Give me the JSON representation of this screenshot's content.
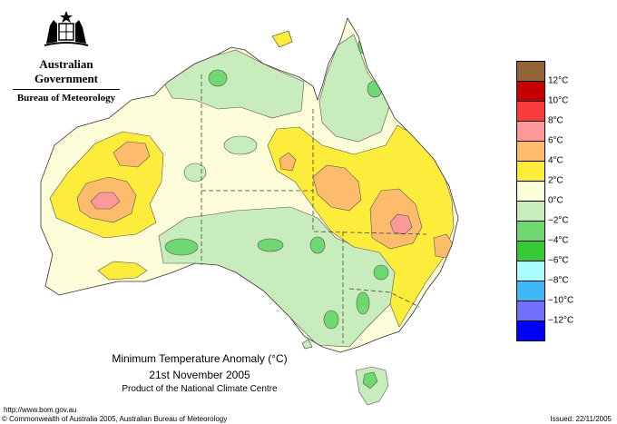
{
  "header": {
    "government": "Australian Government",
    "bureau": "Bureau of Meteorology"
  },
  "map": {
    "title": "Minimum Temperature Anomaly (°C)",
    "date": "21st November 2005",
    "product": "Product of the National Climate Centre"
  },
  "legend": {
    "items": [
      {
        "label": "12°C",
        "color": "#946338"
      },
      {
        "label": "10°C",
        "color": "#c40000"
      },
      {
        "label": "8°C",
        "color": "#fa3c3c"
      },
      {
        "label": "6°C",
        "color": "#fc9898"
      },
      {
        "label": "4°C",
        "color": "#fcbc6c"
      },
      {
        "label": "2°C",
        "color": "#fcec3c"
      },
      {
        "label": "0°C",
        "color": "#fcfcd8"
      },
      {
        "label": "−2°C",
        "color": "#c8ecbc"
      },
      {
        "label": "−4°C",
        "color": "#70d870"
      },
      {
        "label": "−6°C",
        "color": "#36c836"
      },
      {
        "label": "−8°C",
        "color": "#a8fcfc"
      },
      {
        "label": "−10°C",
        "color": "#40b8f8"
      },
      {
        "label": "−12°C",
        "color": "#7070fc"
      },
      {
        "label": "",
        "color": "#0000ff"
      }
    ]
  },
  "footer": {
    "url": "http://www.bom.gov.au",
    "copyright": "© Commonwealth of Australia 2005, Australian Bureau of Meteorology",
    "issued": "Issued: 22/11/2005"
  }
}
